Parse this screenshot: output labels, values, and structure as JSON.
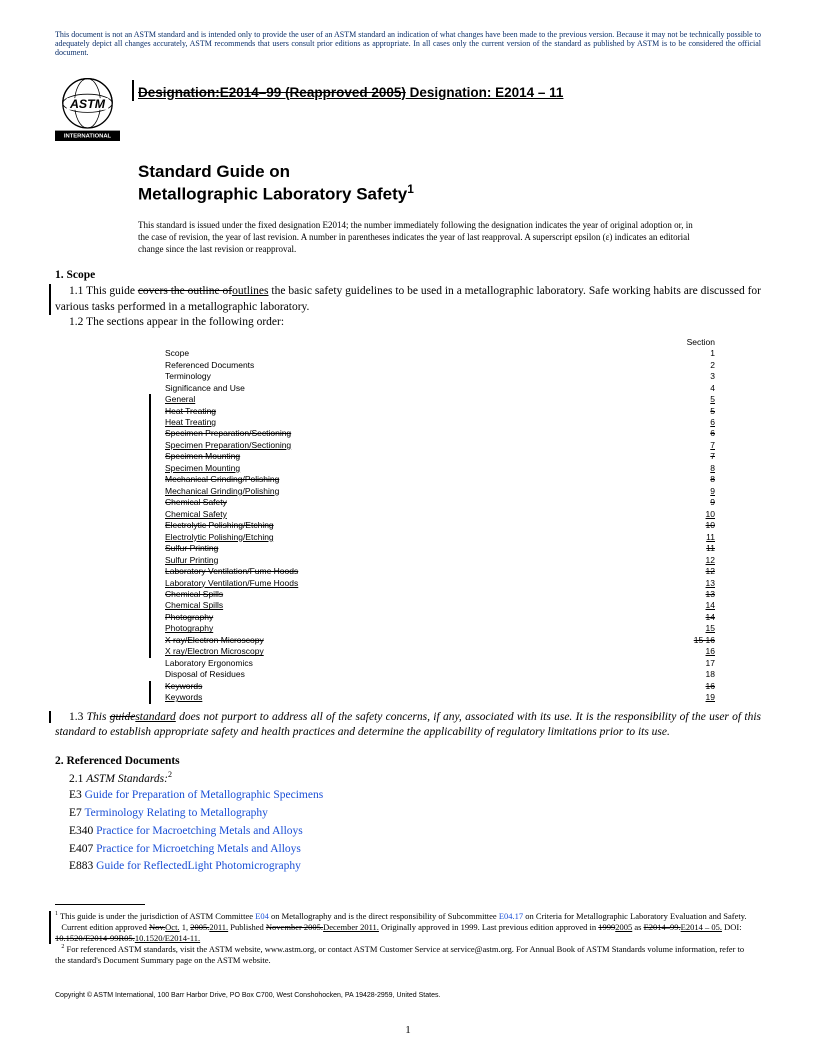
{
  "disclaimer": "This document is not an ASTM standard and is intended only to provide the user of an ASTM standard an indication of what changes have been made to the previous version. Because it may not be technically possible to adequately depict all changes accurately, ASTM recommends that users consult prior editions as appropriate. In all cases only the current version of the standard as published by ASTM is to be considered the official document.",
  "designation": {
    "old": "Designation:E2014–99 (Reapproved 2005)",
    "new": " Designation: E2014 – 11"
  },
  "title": {
    "line1": "Standard Guide on",
    "line2_text": "Metallographic Laboratory Safety",
    "line2_sup": "1"
  },
  "title_note": "This standard is issued under the fixed designation E2014; the number immediately following the designation indicates the year of original adoption or, in the case of revision, the year of last revision. A number in parentheses indicates the year of last reapproval. A superscript epsilon (ε) indicates an editorial change since the last revision or reapproval.",
  "scope": {
    "head": "1.  Scope",
    "p11_a": "1.1 This guide ",
    "p11_del": "covers the outline of",
    "p11_ins": "outlines",
    "p11_b": " the basic safety guidelines to be used in a metallographic laboratory. Safe working habits are discussed for various tasks performed in a metallographic laboratory.",
    "p12": "1.2 The sections appear in the following order:",
    "section_label": "Section"
  },
  "toc": [
    {
      "label": "Scope",
      "num": "1",
      "bar": false,
      "strike": false,
      "uline": false
    },
    {
      "label": "Referenced Documents",
      "num": "2",
      "bar": false,
      "strike": false,
      "uline": false
    },
    {
      "label": "Terminology",
      "num": "3",
      "bar": false,
      "strike": false,
      "uline": false
    },
    {
      "label": "Significance and Use",
      "num": "4",
      "bar": false,
      "strike": false,
      "uline": false
    },
    {
      "label": "General",
      "num": "5",
      "bar": true,
      "strike": false,
      "uline": true,
      "numUline": true
    },
    {
      "label": "Heat Treating",
      "num": "5",
      "bar": true,
      "strike": true,
      "uline": false,
      "numStrike": true
    },
    {
      "label": "Heat Treating",
      "num": "6",
      "bar": true,
      "strike": false,
      "uline": true,
      "numUline": true
    },
    {
      "label": "Specimen Preparation/Sectioning",
      "num": "6",
      "bar": true,
      "strike": true,
      "uline": false,
      "numStrike": true
    },
    {
      "label": "Specimen Preparation/Sectioning",
      "num": "7",
      "bar": true,
      "strike": false,
      "uline": true,
      "numUline": true
    },
    {
      "label": "Specimen Mounting",
      "num": "7",
      "bar": true,
      "strike": true,
      "uline": false,
      "numStrike": true
    },
    {
      "label": "Specimen Mounting",
      "num": "8",
      "bar": true,
      "strike": false,
      "uline": true,
      "numUline": true
    },
    {
      "label": "Mechanical Grinding/Polishing",
      "num": "8",
      "bar": true,
      "strike": true,
      "uline": false,
      "numStrike": true
    },
    {
      "label": "Mechanical Grinding/Polishing",
      "num": "9",
      "bar": true,
      "strike": false,
      "uline": true,
      "numUline": true
    },
    {
      "label": "Chemical Safety",
      "num": "9",
      "bar": true,
      "strike": true,
      "uline": false,
      "numStrike": true
    },
    {
      "label": "Chemical Safety",
      "num": "10",
      "bar": true,
      "strike": false,
      "uline": true,
      "numUline": true
    },
    {
      "label": "Electrolytic Polishing/Etching",
      "num": "10",
      "bar": true,
      "strike": true,
      "uline": false,
      "numStrike": true
    },
    {
      "label": "Electrolytic Polishing/Etching",
      "num": "11",
      "bar": true,
      "strike": false,
      "uline": true,
      "numUline": true
    },
    {
      "label": "Sulfur Printing",
      "num": "11",
      "bar": true,
      "strike": true,
      "uline": false,
      "numStrike": true
    },
    {
      "label": "Sulfur Printing",
      "num": "12",
      "bar": true,
      "strike": false,
      "uline": true,
      "numUline": true
    },
    {
      "label": "Laboratory Ventilation/Fume Hoods",
      "num": "12",
      "bar": true,
      "strike": true,
      "uline": false,
      "numStrike": true
    },
    {
      "label": "Laboratory Ventilation/Fume Hoods",
      "num": "13",
      "bar": true,
      "strike": false,
      "uline": true,
      "numUline": true
    },
    {
      "label": "Chemical Spills",
      "num": "13",
      "bar": true,
      "strike": true,
      "uline": false,
      "numStrike": true
    },
    {
      "label": "Chemical Spills",
      "num": "14",
      "bar": true,
      "strike": false,
      "uline": true,
      "numUline": true
    },
    {
      "label": "Photography",
      "num": "14",
      "bar": true,
      "strike": true,
      "uline": false,
      "numStrike": true
    },
    {
      "label": "Photography",
      "num": "15",
      "bar": true,
      "strike": false,
      "uline": true,
      "numUline": true
    },
    {
      "label": "X ray/Electron Microscopy",
      "num": "15 16",
      "bar": true,
      "strike": true,
      "uline": false,
      "numStrike": true
    },
    {
      "label": "X ray/Electron Microscopy",
      "num": "16",
      "bar": true,
      "strike": false,
      "uline": true,
      "numUline": true
    },
    {
      "label": "Laboratory Ergonomics",
      "num": "17",
      "bar": false,
      "strike": false,
      "uline": false
    },
    {
      "label": "Disposal of Residues",
      "num": "18",
      "bar": false,
      "strike": false,
      "uline": false
    },
    {
      "label": "Keywords",
      "num": "16",
      "bar": true,
      "strike": true,
      "uline": false,
      "numStrike": true
    },
    {
      "label": "Keywords",
      "num": "19",
      "bar": true,
      "strike": false,
      "uline": true,
      "numUline": true
    }
  ],
  "p13": {
    "a": "1.3 ",
    "b": "This ",
    "del": "guide",
    "ins": "standard",
    "c": " does not purport to address all of the safety concerns, if any, associated with its use. It is the responsibility of the user of this standard to establish appropriate safety and health practices and determine the applicability of regulatory limitations prior to its use."
  },
  "refs": {
    "head": "2.  Referenced Documents",
    "sub": "2.1 ",
    "sub_it": "ASTM Standards:",
    "sup": "2",
    "items": [
      {
        "tag": "E3",
        "title": "Guide for Preparation of Metallographic Specimens"
      },
      {
        "tag": "E7",
        "title": "Terminology Relating to Metallography"
      },
      {
        "tag": "E340",
        "title": "Practice for Macroetching Metals and Alloys"
      },
      {
        "tag": "E407",
        "title": "Practice for Microetching Metals and Alloys"
      },
      {
        "tag": "E883",
        "title": "Guide for ReflectedLight Photomicrography"
      }
    ]
  },
  "footnotes": {
    "f1_a": " This guide is under the jurisdiction of ASTM Committee ",
    "f1_l1": "E04",
    "f1_b": " on Metallography and is the direct responsibility of Subcommittee ",
    "f1_l2": "E04.17",
    "f1_c": " on Criteria for Metallographic Laboratory Evaluation and Safety.",
    "f1_line2_a": "Current edition approved ",
    "f1_line2_del1": "Nov.",
    "f1_line2_ins1": "Oct.",
    "f1_line2_b": " 1, ",
    "f1_line2_del2": "2005.",
    "f1_line2_ins2": "2011.",
    "f1_line2_c": " Published ",
    "f1_line2_del3": "November 2005.",
    "f1_line2_ins3": "December 2011.",
    "f1_line2_d": " Originally approved in 1999. Last previous edition approved in ",
    "f1_line2_del4": "1999",
    "f1_line2_ins4": "2005",
    "f1_line3_a": " as ",
    "f1_line3_del1": "E2014–99.",
    "f1_line3_ins1": "E2014 – 05.",
    "f1_line3_b": " DOI: ",
    "f1_line3_del2": "10.1520/E2014-99R05.",
    "f1_line3_ins2": "10.1520/E2014-11.",
    "f2": " For referenced ASTM standards, visit the ASTM website, www.astm.org, or contact ASTM Customer Service at service@astm.org. For Annual Book of ASTM Standards volume information, refer to the standard's Document Summary page on the ASTM website."
  },
  "copyright": "Copyright © ASTM International, 100 Barr Harbor Drive, PO Box C700, West Conshohocken, PA 19428-2959, United States.",
  "page": "1",
  "logo": {
    "text": "INTERNATIONAL"
  }
}
